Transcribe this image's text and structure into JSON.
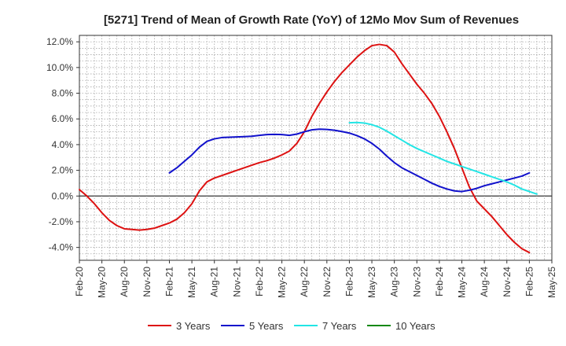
{
  "chart_data": {
    "type": "line",
    "title": "[5271]  Trend of Mean of Growth Rate (YoY) of 12Mo Mov Sum of Revenues",
    "xlabel": "",
    "ylabel": "",
    "ylim": [
      -5.0,
      12.5
    ],
    "yticks": [
      -4.0,
      -2.0,
      0.0,
      2.0,
      4.0,
      6.0,
      8.0,
      10.0,
      12.0
    ],
    "ytick_labels": [
      "-4.0%",
      "-2.0%",
      "0.0%",
      "2.0%",
      "4.0%",
      "6.0%",
      "8.0%",
      "10.0%",
      "12.0%"
    ],
    "xtick_labels": [
      "Feb-20",
      "May-20",
      "Aug-20",
      "Nov-20",
      "Feb-21",
      "May-21",
      "Aug-21",
      "Nov-21",
      "Feb-22",
      "May-22",
      "Aug-22",
      "Nov-22",
      "Feb-23",
      "May-23",
      "Aug-23",
      "Nov-23",
      "Feb-24",
      "May-24",
      "Aug-24",
      "Nov-24",
      "Feb-25",
      "May-25"
    ],
    "x_unit": "month index from Feb-20",
    "xlim": [
      0,
      63
    ],
    "grid": true,
    "legend_position": "bottom",
    "series": [
      {
        "name": "3 Years",
        "color": "#dd1111",
        "points": [
          [
            0,
            0.5
          ],
          [
            1,
            0.0
          ],
          [
            2,
            -0.6
          ],
          [
            3,
            -1.3
          ],
          [
            4,
            -1.9
          ],
          [
            5,
            -2.3
          ],
          [
            6,
            -2.55
          ],
          [
            7,
            -2.6
          ],
          [
            8,
            -2.65
          ],
          [
            9,
            -2.6
          ],
          [
            10,
            -2.5
          ],
          [
            11,
            -2.3
          ],
          [
            12,
            -2.1
          ],
          [
            13,
            -1.8
          ],
          [
            14,
            -1.3
          ],
          [
            15,
            -0.6
          ],
          [
            16,
            0.4
          ],
          [
            17,
            1.1
          ],
          [
            18,
            1.4
          ],
          [
            19,
            1.6
          ],
          [
            20,
            1.8
          ],
          [
            21,
            2.0
          ],
          [
            22,
            2.2
          ],
          [
            23,
            2.4
          ],
          [
            24,
            2.6
          ],
          [
            25,
            2.75
          ],
          [
            26,
            2.95
          ],
          [
            27,
            3.2
          ],
          [
            28,
            3.5
          ],
          [
            29,
            4.1
          ],
          [
            30,
            5.0
          ],
          [
            31,
            6.2
          ],
          [
            32,
            7.2
          ],
          [
            33,
            8.1
          ],
          [
            34,
            8.9
          ],
          [
            35,
            9.6
          ],
          [
            36,
            10.2
          ],
          [
            37,
            10.8
          ],
          [
            38,
            11.3
          ],
          [
            39,
            11.7
          ],
          [
            40,
            11.8
          ],
          [
            41,
            11.7
          ],
          [
            42,
            11.2
          ],
          [
            43,
            10.3
          ],
          [
            44,
            9.5
          ],
          [
            45,
            8.7
          ],
          [
            46,
            8.0
          ],
          [
            47,
            7.2
          ],
          [
            48,
            6.2
          ],
          [
            49,
            5.0
          ],
          [
            50,
            3.7
          ],
          [
            51,
            2.2
          ],
          [
            52,
            0.7
          ],
          [
            53,
            -0.4
          ],
          [
            54,
            -1.0
          ],
          [
            55,
            -1.6
          ],
          [
            56,
            -2.3
          ],
          [
            57,
            -3.0
          ],
          [
            58,
            -3.6
          ],
          [
            59,
            -4.1
          ],
          [
            60,
            -4.4
          ]
        ]
      },
      {
        "name": "5 Years",
        "color": "#1111cc",
        "points": [
          [
            12,
            1.8
          ],
          [
            13,
            2.2
          ],
          [
            14,
            2.7
          ],
          [
            15,
            3.2
          ],
          [
            16,
            3.8
          ],
          [
            17,
            4.25
          ],
          [
            18,
            4.45
          ],
          [
            19,
            4.55
          ],
          [
            20,
            4.58
          ],
          [
            21,
            4.6
          ],
          [
            22,
            4.62
          ],
          [
            23,
            4.65
          ],
          [
            24,
            4.72
          ],
          [
            25,
            4.78
          ],
          [
            26,
            4.8
          ],
          [
            27,
            4.78
          ],
          [
            28,
            4.72
          ],
          [
            29,
            4.82
          ],
          [
            30,
            5.0
          ],
          [
            31,
            5.15
          ],
          [
            32,
            5.2
          ],
          [
            33,
            5.18
          ],
          [
            34,
            5.12
          ],
          [
            35,
            5.02
          ],
          [
            36,
            4.9
          ],
          [
            37,
            4.7
          ],
          [
            38,
            4.45
          ],
          [
            39,
            4.1
          ],
          [
            40,
            3.65
          ],
          [
            41,
            3.1
          ],
          [
            42,
            2.6
          ],
          [
            43,
            2.2
          ],
          [
            44,
            1.9
          ],
          [
            45,
            1.6
          ],
          [
            46,
            1.3
          ],
          [
            47,
            1.0
          ],
          [
            48,
            0.75
          ],
          [
            49,
            0.55
          ],
          [
            50,
            0.4
          ],
          [
            51,
            0.35
          ],
          [
            52,
            0.45
          ],
          [
            53,
            0.6
          ],
          [
            54,
            0.8
          ],
          [
            55,
            0.95
          ],
          [
            56,
            1.1
          ],
          [
            57,
            1.25
          ],
          [
            58,
            1.4
          ],
          [
            59,
            1.55
          ],
          [
            60,
            1.8
          ]
        ]
      },
      {
        "name": "7 Years",
        "color": "#22e5e5",
        "points": [
          [
            36,
            5.7
          ],
          [
            37,
            5.72
          ],
          [
            38,
            5.68
          ],
          [
            39,
            5.55
          ],
          [
            40,
            5.35
          ],
          [
            41,
            5.05
          ],
          [
            42,
            4.7
          ],
          [
            43,
            4.35
          ],
          [
            44,
            4.0
          ],
          [
            45,
            3.7
          ],
          [
            46,
            3.45
          ],
          [
            47,
            3.2
          ],
          [
            48,
            2.95
          ],
          [
            49,
            2.7
          ],
          [
            50,
            2.5
          ],
          [
            51,
            2.3
          ],
          [
            52,
            2.1
          ],
          [
            53,
            1.9
          ],
          [
            54,
            1.7
          ],
          [
            55,
            1.5
          ],
          [
            56,
            1.3
          ],
          [
            57,
            1.1
          ],
          [
            58,
            0.85
          ],
          [
            59,
            0.55
          ],
          [
            60,
            0.35
          ],
          [
            61,
            0.15
          ]
        ]
      },
      {
        "name": "10 Years",
        "color": "#118811",
        "points": []
      }
    ]
  }
}
